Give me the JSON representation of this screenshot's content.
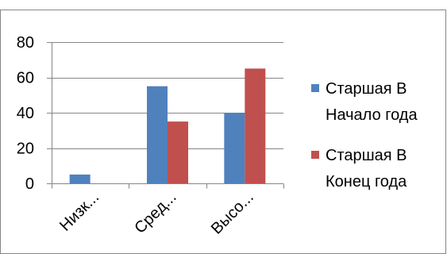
{
  "chart_data": {
    "type": "bar",
    "categories": [
      "Низк...",
      "Сред...",
      "Высо..."
    ],
    "series": [
      {
        "name_lines": [
          "Старшая В",
          "Начало года"
        ],
        "values": [
          5,
          55,
          40
        ],
        "color": "#4F81BD"
      },
      {
        "name_lines": [
          "Старшая В",
          "Конец года"
        ],
        "values": [
          0,
          35,
          65
        ],
        "color": "#C0504D"
      }
    ],
    "y_ticks": [
      "0",
      "20",
      "40",
      "60",
      "80"
    ],
    "ylim": [
      0,
      80
    ],
    "grid": true,
    "legend_position": "right",
    "axis_color": "#868686",
    "grid_color": "#868686",
    "border_color": "#868686"
  }
}
